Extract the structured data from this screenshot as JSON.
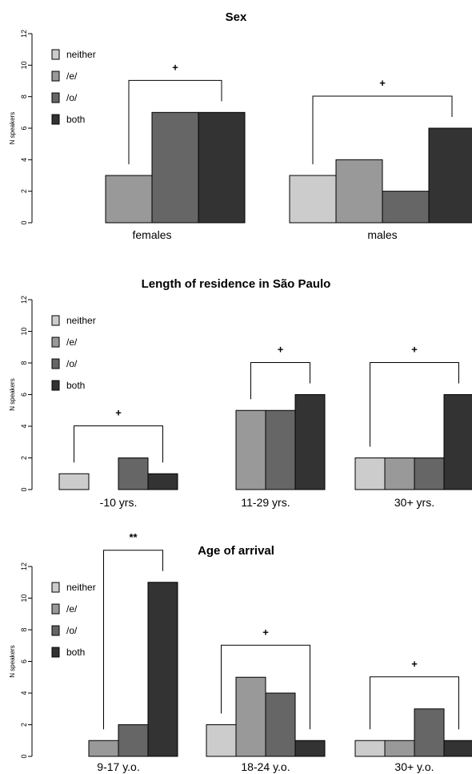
{
  "chart_data": [
    {
      "type": "bar",
      "title": "Sex",
      "ylabel": "N speakers",
      "xlabel": "",
      "ylim": [
        0,
        12
      ],
      "yticks": [
        0,
        2,
        4,
        6,
        8,
        10,
        12
      ],
      "categories": [
        "females",
        "males"
      ],
      "series": [
        {
          "name": "neither",
          "values": [
            0,
            3
          ]
        },
        {
          "name": "/e/",
          "values": [
            3,
            4
          ]
        },
        {
          "name": "/o/",
          "values": [
            7,
            2
          ]
        },
        {
          "name": "both",
          "values": [
            7,
            6
          ]
        }
      ],
      "significance": [
        {
          "category": "females",
          "from": "/e/",
          "to": "both",
          "label": "+"
        },
        {
          "category": "males",
          "from": "neither",
          "to": "both",
          "label": "+"
        }
      ],
      "legend": "top-left",
      "grid": false
    },
    {
      "type": "bar",
      "title": "Length of residence in São Paulo",
      "ylabel": "N speakers",
      "xlabel": "",
      "ylim": [
        0,
        12
      ],
      "yticks": [
        0,
        2,
        4,
        6,
        8,
        10,
        12
      ],
      "categories": [
        "-10 yrs.",
        "11-29 yrs.",
        "30+ yrs."
      ],
      "series": [
        {
          "name": "neither",
          "values": [
            1,
            0,
            2
          ]
        },
        {
          "name": "/e/",
          "values": [
            0,
            5,
            2
          ]
        },
        {
          "name": "/o/",
          "values": [
            2,
            5,
            2
          ]
        },
        {
          "name": "both",
          "values": [
            1,
            6,
            6
          ]
        }
      ],
      "significance": [
        {
          "category": "-10 yrs.",
          "from": "neither",
          "to": "both",
          "label": "+"
        },
        {
          "category": "11-29 yrs.",
          "from": "/e/",
          "to": "both",
          "label": "+"
        },
        {
          "category": "30+ yrs.",
          "from": "neither",
          "to": "both",
          "label": "+"
        }
      ],
      "legend": "top-left",
      "grid": false
    },
    {
      "type": "bar",
      "title": "Age of arrival",
      "ylabel": "N speakers",
      "xlabel": "",
      "ylim": [
        0,
        12
      ],
      "yticks": [
        0,
        2,
        4,
        6,
        8,
        10,
        12
      ],
      "categories": [
        "9-17 y.o.",
        "18-24 y.o.",
        "30+ y.o."
      ],
      "series": [
        {
          "name": "neither",
          "values": [
            0,
            2,
            1
          ]
        },
        {
          "name": "/e/",
          "values": [
            1,
            5,
            1
          ]
        },
        {
          "name": "/o/",
          "values": [
            2,
            4,
            3
          ]
        },
        {
          "name": "both",
          "values": [
            11,
            1,
            1
          ]
        }
      ],
      "significance": [
        {
          "category": "9-17 y.o.",
          "from": "/e/",
          "to": "both",
          "label": "**"
        },
        {
          "category": "18-24 y.o.",
          "from": "neither",
          "to": "both",
          "label": "+"
        },
        {
          "category": "30+ y.o.",
          "from": "neither",
          "to": "both",
          "label": "+"
        }
      ],
      "legend": "top-left",
      "grid": false
    }
  ],
  "colors": {
    "neither": "#cccccc",
    "/e/": "#999999",
    "/o/": "#666666",
    "both": "#333333",
    "outline": "#000000"
  }
}
